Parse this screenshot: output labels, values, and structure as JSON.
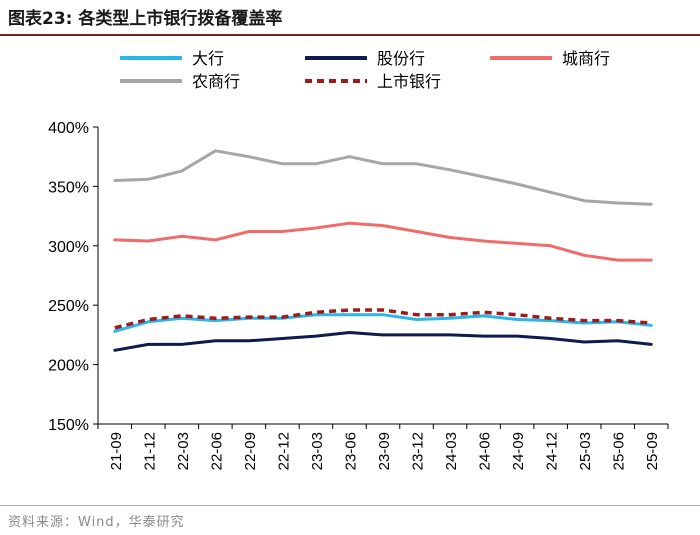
{
  "figure": {
    "title": "图表23:  各类型上市银行拨备覆盖率",
    "source": "资料来源：Wind，华泰研究"
  },
  "chart_data": {
    "type": "line",
    "title": "各类型上市银行拨备覆盖率",
    "xlabel": "",
    "ylabel": "",
    "ylim": [
      150,
      400
    ],
    "yticks": [
      150,
      200,
      250,
      300,
      350,
      400
    ],
    "ytick_suffix": "%",
    "categories": [
      "21-09",
      "21-12",
      "22-03",
      "22-06",
      "22-09",
      "22-12",
      "23-03",
      "23-06",
      "23-09",
      "23-12",
      "24-03",
      "24-06",
      "24-09",
      "24-12",
      "25-03",
      "25-06",
      "25-09"
    ],
    "legend_position": "top",
    "series": [
      {
        "name": "大行",
        "color": "#29b6e8",
        "style": "solid",
        "values": [
          228,
          236,
          239,
          237,
          239,
          239,
          242,
          242,
          242,
          238,
          239,
          241,
          238,
          237,
          235,
          236,
          233
        ]
      },
      {
        "name": "股份行",
        "color": "#0d1b4f",
        "style": "solid",
        "values": [
          212,
          217,
          217,
          220,
          220,
          222,
          224,
          227,
          225,
          225,
          225,
          224,
          224,
          222,
          219,
          220,
          217
        ]
      },
      {
        "name": "城商行",
        "color": "#f26b6b",
        "style": "solid",
        "values": [
          305,
          304,
          308,
          305,
          312,
          312,
          315,
          319,
          317,
          312,
          307,
          304,
          302,
          300,
          292,
          288,
          288
        ]
      },
      {
        "name": "农商行",
        "color": "#a6a6a6",
        "style": "solid",
        "values": [
          355,
          356,
          363,
          380,
          375,
          369,
          369,
          375,
          369,
          369,
          364,
          358,
          352,
          345,
          338,
          336,
          335
        ]
      },
      {
        "name": "上市银行",
        "color": "#9e1b1b",
        "style": "dashed",
        "values": [
          231,
          238,
          241,
          239,
          240,
          240,
          244,
          246,
          246,
          242,
          242,
          244,
          242,
          239,
          237,
          237,
          235
        ]
      }
    ]
  }
}
